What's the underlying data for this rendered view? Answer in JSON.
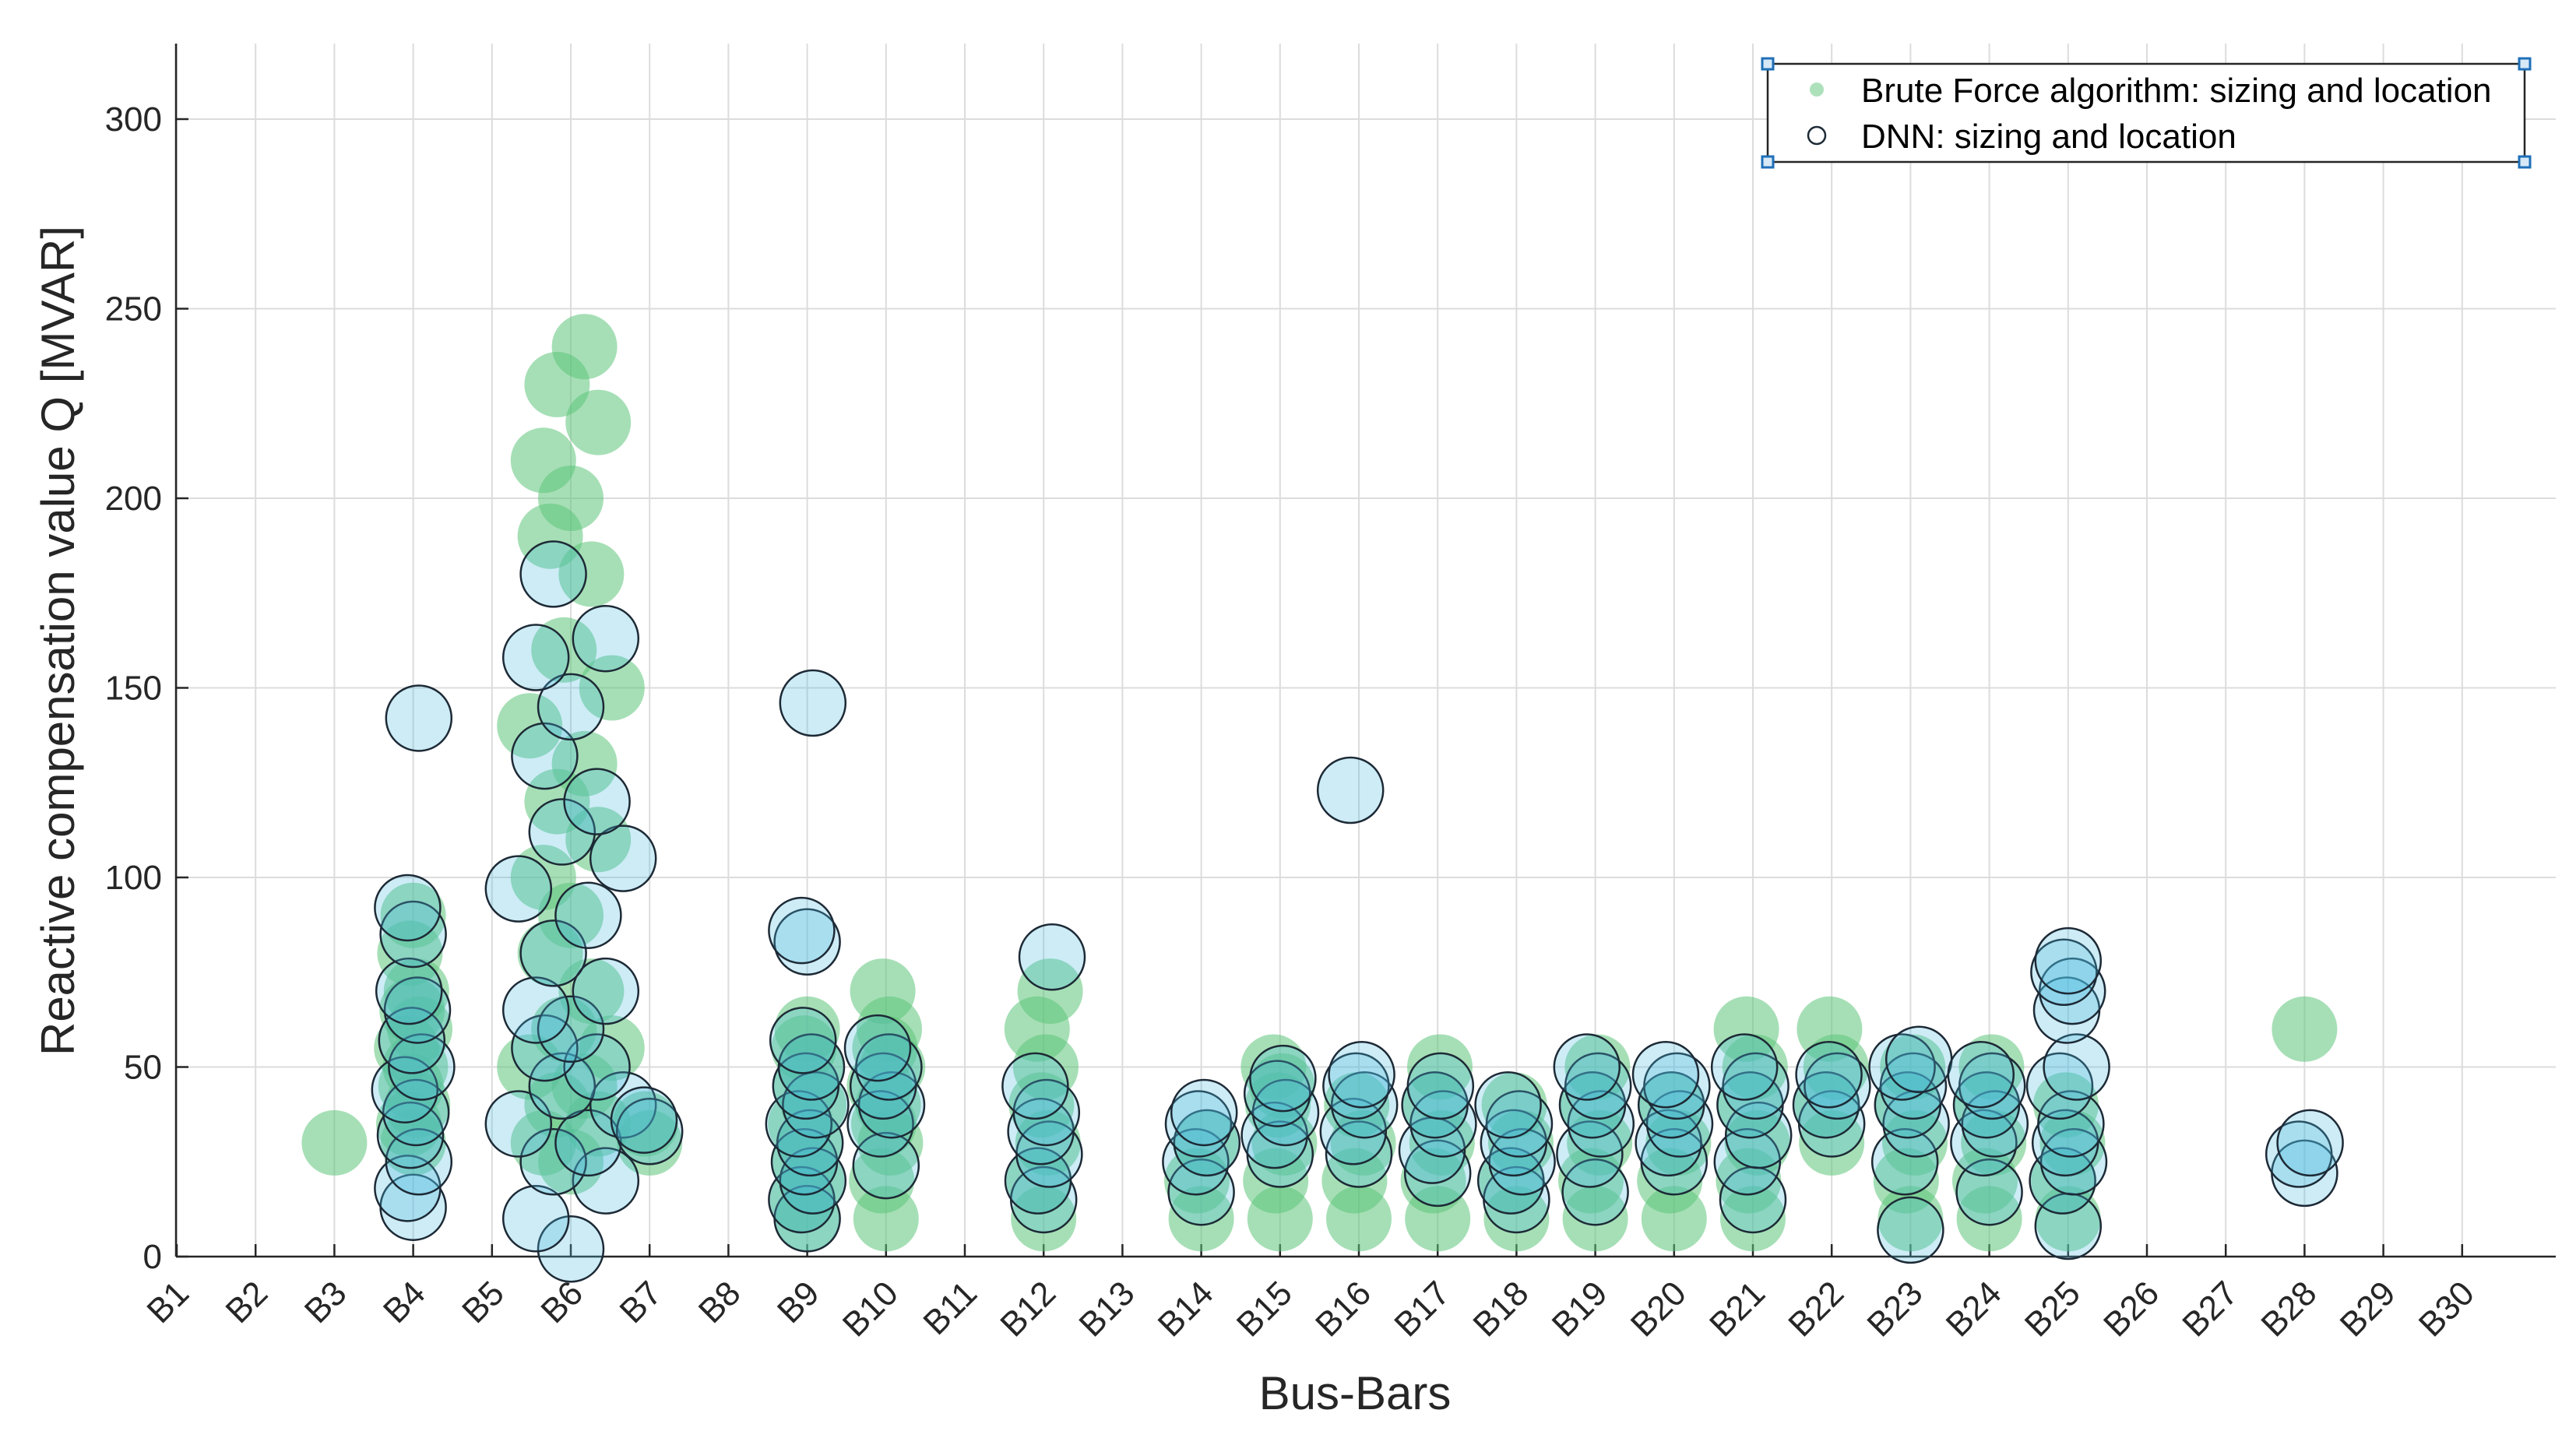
{
  "chart_data": {
    "type": "scatter",
    "xlabel": "Bus-Bars",
    "ylabel": "Reactive compensation value Q [MVAR]",
    "ylim": [
      0,
      320
    ],
    "yticks": [
      0,
      50,
      100,
      150,
      200,
      250,
      300
    ],
    "categories": [
      "B1",
      "B2",
      "B3",
      "B4",
      "B5",
      "B6",
      "B7",
      "B8",
      "B9",
      "B10",
      "B11",
      "B12",
      "B13",
      "B14",
      "B15",
      "B16",
      "B17",
      "B18",
      "B19",
      "B20",
      "B21",
      "B22",
      "B23",
      "B24",
      "B25",
      "B26",
      "B27",
      "B28",
      "B29",
      "B30"
    ],
    "grid": true,
    "legend_position": "top-right",
    "series": [
      {
        "name": "Brute Force algorithm: sizing and location",
        "color": "#5cc47a",
        "marker": "filled-circle",
        "points": [
          {
            "bus": 3,
            "values": [
              30
            ]
          },
          {
            "bus": 4,
            "values": [
              30,
              35,
              40,
              45,
              50,
              55,
              60,
              65,
              70,
              80,
              90
            ]
          },
          {
            "bus": 6,
            "values": [
              25,
              30,
              35,
              40,
              45,
              50,
              55,
              60,
              70,
              80,
              90,
              100,
              110,
              120,
              130,
              140,
              150,
              160,
              180,
              190,
              200,
              210,
              220,
              230,
              240
            ]
          },
          {
            "bus": 7,
            "values": [
              30,
              35
            ]
          },
          {
            "bus": 9,
            "values": [
              10,
              15,
              20,
              25,
              30,
              35,
              40,
              45,
              50,
              55,
              60
            ]
          },
          {
            "bus": 10,
            "values": [
              10,
              20,
              30,
              35,
              40,
              45,
              50,
              55,
              60,
              70
            ]
          },
          {
            "bus": 12,
            "values": [
              10,
              20,
              30,
              40,
              50,
              60,
              70
            ]
          },
          {
            "bus": 14,
            "values": [
              10,
              20,
              30
            ]
          },
          {
            "bus": 15,
            "values": [
              10,
              20,
              30,
              40,
              45,
              50
            ]
          },
          {
            "bus": 16,
            "values": [
              10,
              20,
              30,
              40
            ]
          },
          {
            "bus": 17,
            "values": [
              10,
              20,
              30,
              40,
              50
            ]
          },
          {
            "bus": 18,
            "values": [
              10,
              20,
              30,
              40
            ]
          },
          {
            "bus": 19,
            "values": [
              10,
              20,
              30,
              40,
              50
            ]
          },
          {
            "bus": 20,
            "values": [
              10,
              20,
              30,
              40
            ]
          },
          {
            "bus": 21,
            "values": [
              10,
              20,
              30,
              40,
              50,
              60
            ]
          },
          {
            "bus": 22,
            "values": [
              30,
              40,
              50,
              60
            ]
          },
          {
            "bus": 23,
            "values": [
              10,
              20,
              30,
              40,
              50
            ]
          },
          {
            "bus": 24,
            "values": [
              10,
              20,
              30,
              40,
              50
            ]
          },
          {
            "bus": 25,
            "values": [
              10,
              20,
              30,
              40
            ]
          },
          {
            "bus": 28,
            "values": [
              60
            ]
          }
        ]
      },
      {
        "name": "DNN: sizing and location",
        "color": "#4bbbe0",
        "marker": "open-circle",
        "points": [
          {
            "bus": 4,
            "values": [
              13,
              18,
              25,
              32,
              38,
              44,
              50,
              57,
              65,
              70,
              85,
              92,
              142
            ]
          },
          {
            "bus": 6,
            "values": [
              2,
              10,
              20,
              25,
              30,
              35,
              40,
              45,
              50,
              55,
              60,
              65,
              70,
              80,
              90,
              97,
              105,
              112,
              120,
              132,
              145,
              158,
              163,
              180
            ]
          },
          {
            "bus": 7,
            "values": [
              33,
              36
            ]
          },
          {
            "bus": 9,
            "values": [
              10,
              15,
              20,
              25,
              30,
              35,
              40,
              45,
              50,
              57,
              83,
              86,
              146
            ]
          },
          {
            "bus": 10,
            "values": [
              24,
              35,
              40,
              45,
              50,
              55
            ]
          },
          {
            "bus": 12,
            "values": [
              15,
              20,
              27,
              33,
              38,
              45,
              79
            ]
          },
          {
            "bus": 14,
            "values": [
              17,
              25,
              30,
              35,
              38
            ]
          },
          {
            "bus": 15,
            "values": [
              27,
              32,
              38,
              43,
              47
            ]
          },
          {
            "bus": 16,
            "values": [
              27,
              33,
              40,
              45,
              48,
              123
            ]
          },
          {
            "bus": 17,
            "values": [
              22,
              28,
              35,
              40,
              45
            ]
          },
          {
            "bus": 18,
            "values": [
              15,
              20,
              25,
              30,
              35,
              40
            ]
          },
          {
            "bus": 19,
            "values": [
              17,
              27,
              35,
              40,
              45,
              50
            ]
          },
          {
            "bus": 20,
            "values": [
              25,
              30,
              35,
              40,
              45,
              48
            ]
          },
          {
            "bus": 21,
            "values": [
              15,
              25,
              32,
              40,
              45,
              50
            ]
          },
          {
            "bus": 22,
            "values": [
              35,
              40,
              45,
              48
            ]
          },
          {
            "bus": 23,
            "values": [
              7,
              25,
              35,
              40,
              45,
              50,
              52
            ]
          },
          {
            "bus": 24,
            "values": [
              17,
              30,
              35,
              40,
              45,
              48
            ]
          },
          {
            "bus": 25,
            "values": [
              8,
              20,
              25,
              30,
              35,
              45,
              50,
              65,
              70,
              75,
              78
            ]
          },
          {
            "bus": 28,
            "values": [
              22,
              27,
              30
            ]
          }
        ]
      }
    ]
  }
}
